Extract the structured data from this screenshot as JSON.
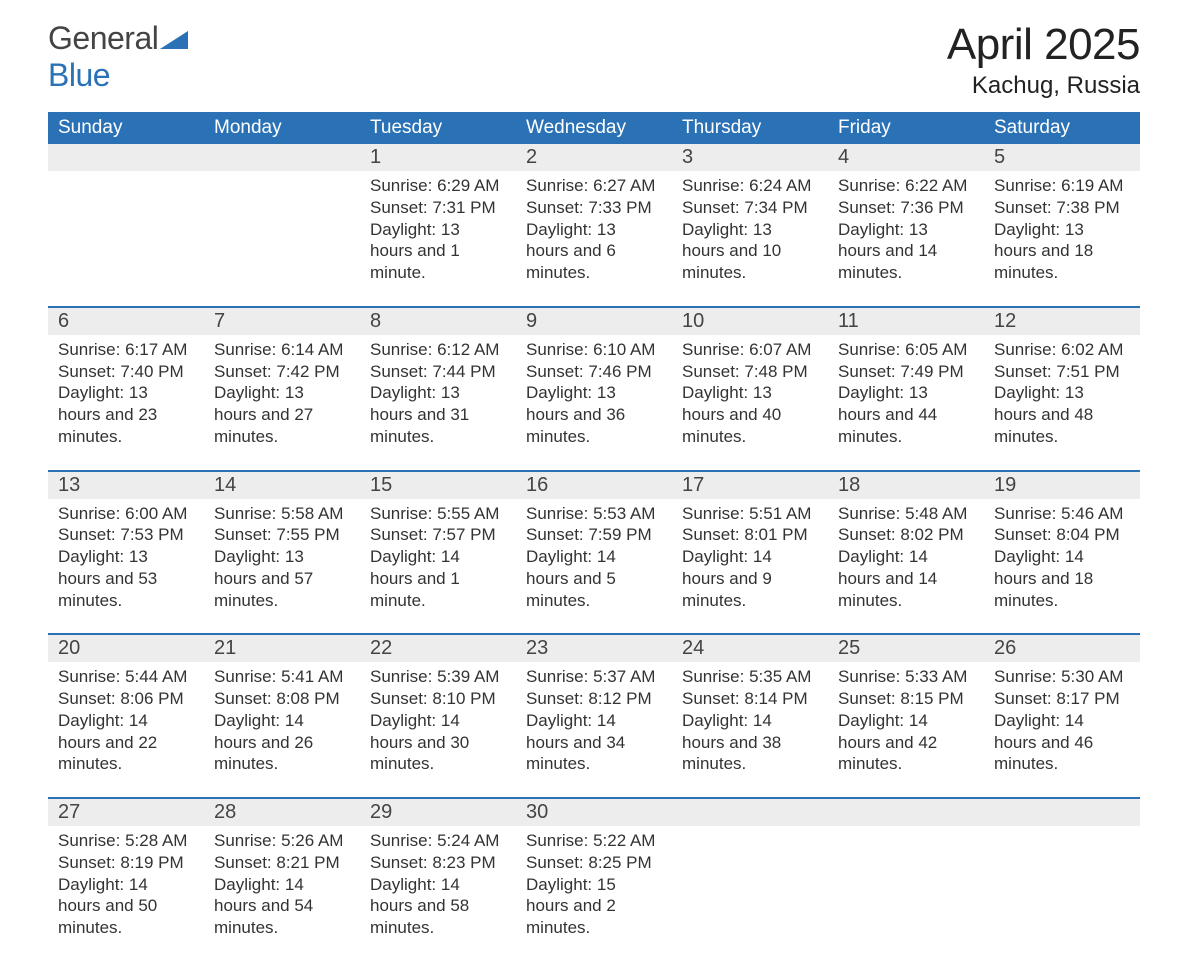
{
  "logo": {
    "word1": "General",
    "word2": "Blue"
  },
  "title": "April 2025",
  "location": "Kachug, Russia",
  "colors": {
    "header_bg": "#2a72b5",
    "header_text": "#ffffff",
    "band_bg": "#ededed",
    "body_text": "#333333",
    "accent_border": "#2a72b5",
    "logo_gray": "#444444",
    "logo_blue": "#2a72b5",
    "page_bg": "#ffffff"
  },
  "fonts": {
    "title_size_pt": 33,
    "location_size_pt": 18,
    "dow_size_pt": 14,
    "daynum_size_pt": 15,
    "body_size_pt": 13
  },
  "days_of_week": [
    "Sunday",
    "Monday",
    "Tuesday",
    "Wednesday",
    "Thursday",
    "Friday",
    "Saturday"
  ],
  "weeks": [
    [
      {
        "num": "",
        "sunrise": "",
        "sunset": "",
        "daylight": ""
      },
      {
        "num": "",
        "sunrise": "",
        "sunset": "",
        "daylight": ""
      },
      {
        "num": "1",
        "sunrise": "Sunrise: 6:29 AM",
        "sunset": "Sunset: 7:31 PM",
        "daylight": "Daylight: 13 hours and 1 minute."
      },
      {
        "num": "2",
        "sunrise": "Sunrise: 6:27 AM",
        "sunset": "Sunset: 7:33 PM",
        "daylight": "Daylight: 13 hours and 6 minutes."
      },
      {
        "num": "3",
        "sunrise": "Sunrise: 6:24 AM",
        "sunset": "Sunset: 7:34 PM",
        "daylight": "Daylight: 13 hours and 10 minutes."
      },
      {
        "num": "4",
        "sunrise": "Sunrise: 6:22 AM",
        "sunset": "Sunset: 7:36 PM",
        "daylight": "Daylight: 13 hours and 14 minutes."
      },
      {
        "num": "5",
        "sunrise": "Sunrise: 6:19 AM",
        "sunset": "Sunset: 7:38 PM",
        "daylight": "Daylight: 13 hours and 18 minutes."
      }
    ],
    [
      {
        "num": "6",
        "sunrise": "Sunrise: 6:17 AM",
        "sunset": "Sunset: 7:40 PM",
        "daylight": "Daylight: 13 hours and 23 minutes."
      },
      {
        "num": "7",
        "sunrise": "Sunrise: 6:14 AM",
        "sunset": "Sunset: 7:42 PM",
        "daylight": "Daylight: 13 hours and 27 minutes."
      },
      {
        "num": "8",
        "sunrise": "Sunrise: 6:12 AM",
        "sunset": "Sunset: 7:44 PM",
        "daylight": "Daylight: 13 hours and 31 minutes."
      },
      {
        "num": "9",
        "sunrise": "Sunrise: 6:10 AM",
        "sunset": "Sunset: 7:46 PM",
        "daylight": "Daylight: 13 hours and 36 minutes."
      },
      {
        "num": "10",
        "sunrise": "Sunrise: 6:07 AM",
        "sunset": "Sunset: 7:48 PM",
        "daylight": "Daylight: 13 hours and 40 minutes."
      },
      {
        "num": "11",
        "sunrise": "Sunrise: 6:05 AM",
        "sunset": "Sunset: 7:49 PM",
        "daylight": "Daylight: 13 hours and 44 minutes."
      },
      {
        "num": "12",
        "sunrise": "Sunrise: 6:02 AM",
        "sunset": "Sunset: 7:51 PM",
        "daylight": "Daylight: 13 hours and 48 minutes."
      }
    ],
    [
      {
        "num": "13",
        "sunrise": "Sunrise: 6:00 AM",
        "sunset": "Sunset: 7:53 PM",
        "daylight": "Daylight: 13 hours and 53 minutes."
      },
      {
        "num": "14",
        "sunrise": "Sunrise: 5:58 AM",
        "sunset": "Sunset: 7:55 PM",
        "daylight": "Daylight: 13 hours and 57 minutes."
      },
      {
        "num": "15",
        "sunrise": "Sunrise: 5:55 AM",
        "sunset": "Sunset: 7:57 PM",
        "daylight": "Daylight: 14 hours and 1 minute."
      },
      {
        "num": "16",
        "sunrise": "Sunrise: 5:53 AM",
        "sunset": "Sunset: 7:59 PM",
        "daylight": "Daylight: 14 hours and 5 minutes."
      },
      {
        "num": "17",
        "sunrise": "Sunrise: 5:51 AM",
        "sunset": "Sunset: 8:01 PM",
        "daylight": "Daylight: 14 hours and 9 minutes."
      },
      {
        "num": "18",
        "sunrise": "Sunrise: 5:48 AM",
        "sunset": "Sunset: 8:02 PM",
        "daylight": "Daylight: 14 hours and 14 minutes."
      },
      {
        "num": "19",
        "sunrise": "Sunrise: 5:46 AM",
        "sunset": "Sunset: 8:04 PM",
        "daylight": "Daylight: 14 hours and 18 minutes."
      }
    ],
    [
      {
        "num": "20",
        "sunrise": "Sunrise: 5:44 AM",
        "sunset": "Sunset: 8:06 PM",
        "daylight": "Daylight: 14 hours and 22 minutes."
      },
      {
        "num": "21",
        "sunrise": "Sunrise: 5:41 AM",
        "sunset": "Sunset: 8:08 PM",
        "daylight": "Daylight: 14 hours and 26 minutes."
      },
      {
        "num": "22",
        "sunrise": "Sunrise: 5:39 AM",
        "sunset": "Sunset: 8:10 PM",
        "daylight": "Daylight: 14 hours and 30 minutes."
      },
      {
        "num": "23",
        "sunrise": "Sunrise: 5:37 AM",
        "sunset": "Sunset: 8:12 PM",
        "daylight": "Daylight: 14 hours and 34 minutes."
      },
      {
        "num": "24",
        "sunrise": "Sunrise: 5:35 AM",
        "sunset": "Sunset: 8:14 PM",
        "daylight": "Daylight: 14 hours and 38 minutes."
      },
      {
        "num": "25",
        "sunrise": "Sunrise: 5:33 AM",
        "sunset": "Sunset: 8:15 PM",
        "daylight": "Daylight: 14 hours and 42 minutes."
      },
      {
        "num": "26",
        "sunrise": "Sunrise: 5:30 AM",
        "sunset": "Sunset: 8:17 PM",
        "daylight": "Daylight: 14 hours and 46 minutes."
      }
    ],
    [
      {
        "num": "27",
        "sunrise": "Sunrise: 5:28 AM",
        "sunset": "Sunset: 8:19 PM",
        "daylight": "Daylight: 14 hours and 50 minutes."
      },
      {
        "num": "28",
        "sunrise": "Sunrise: 5:26 AM",
        "sunset": "Sunset: 8:21 PM",
        "daylight": "Daylight: 14 hours and 54 minutes."
      },
      {
        "num": "29",
        "sunrise": "Sunrise: 5:24 AM",
        "sunset": "Sunset: 8:23 PM",
        "daylight": "Daylight: 14 hours and 58 minutes."
      },
      {
        "num": "30",
        "sunrise": "Sunrise: 5:22 AM",
        "sunset": "Sunset: 8:25 PM",
        "daylight": "Daylight: 15 hours and 2 minutes."
      },
      {
        "num": "",
        "sunrise": "",
        "sunset": "",
        "daylight": ""
      },
      {
        "num": "",
        "sunrise": "",
        "sunset": "",
        "daylight": ""
      },
      {
        "num": "",
        "sunrise": "",
        "sunset": "",
        "daylight": ""
      }
    ]
  ]
}
